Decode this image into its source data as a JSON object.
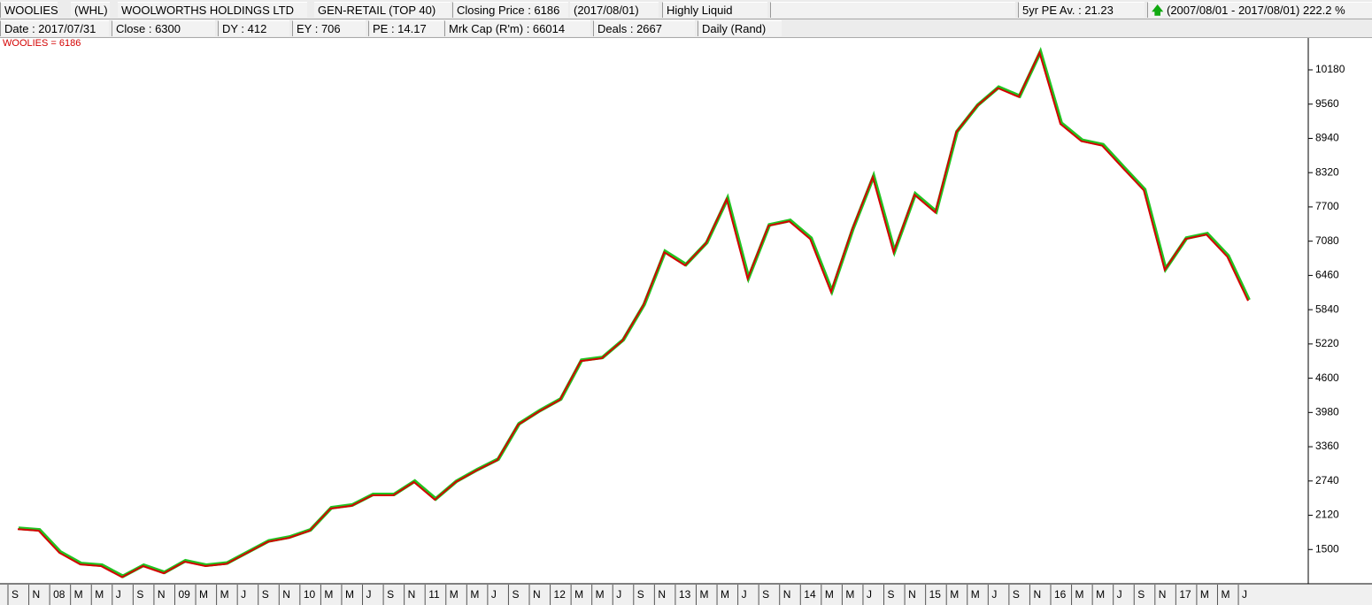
{
  "header": {
    "row1": [
      "WOOLIES",
      "(WHL)",
      "WOOLWORTHS HOLDINGS LTD",
      "GEN-RETAIL (TOP 40)",
      "Closing Price : 6186",
      "(2017/08/01)",
      "Highly Liquid",
      "5yr PE Av. : 21.23",
      "(2007/08/01 - 2017/08/01)",
      "222.2 %"
    ],
    "row2": [
      "Date : 2017/07/31",
      "Close : 6300",
      "DY : 412",
      "EY : 706",
      "PE : 14.17",
      "Mrk Cap (R'm) : 66014",
      "Deals : 2667",
      "Daily (Rand)"
    ]
  },
  "chart_data": {
    "type": "line",
    "categories": [
      "S",
      "N",
      "08",
      "M",
      "M",
      "J",
      "S",
      "N",
      "09",
      "M",
      "M",
      "J",
      "S",
      "N",
      "10",
      "M",
      "M",
      "J",
      "S",
      "N",
      "11",
      "M",
      "M",
      "J",
      "S",
      "N",
      "12",
      "M",
      "M",
      "J",
      "S",
      "N",
      "13",
      "M",
      "M",
      "J",
      "S",
      "N",
      "14",
      "M",
      "M",
      "J",
      "S",
      "N",
      "15",
      "M",
      "M",
      "J",
      "S",
      "N",
      "16",
      "M",
      "M",
      "J",
      "S",
      "N",
      "17",
      "M",
      "M",
      "J"
    ],
    "series": [
      {
        "name": "WOOLIES = 6186",
        "color": "#d40000",
        "values": [
          1870,
          1840,
          1440,
          1230,
          1200,
          1000,
          1200,
          1070,
          1280,
          1200,
          1240,
          1440,
          1640,
          1710,
          1840,
          2240,
          2290,
          2480,
          2480,
          2720,
          2400,
          2720,
          2930,
          3120,
          3760,
          4000,
          4210,
          4910,
          4960,
          5280,
          5920,
          6880,
          6640,
          7040,
          7840,
          6400,
          7360,
          7440,
          7120,
          6160,
          7280,
          8240,
          6880,
          7920,
          7600,
          9050,
          9530,
          9850,
          9690,
          10490,
          9200,
          8890,
          8810,
          8400,
          8000,
          6560,
          7120,
          7200,
          6800,
          6000
        ]
      }
    ],
    "ylim": [
      880,
      10740
    ],
    "yticks": [
      1500,
      2120,
      2740,
      3360,
      3980,
      4600,
      5220,
      5840,
      6460,
      7080,
      7700,
      8320,
      8940,
      9560,
      10180
    ]
  }
}
